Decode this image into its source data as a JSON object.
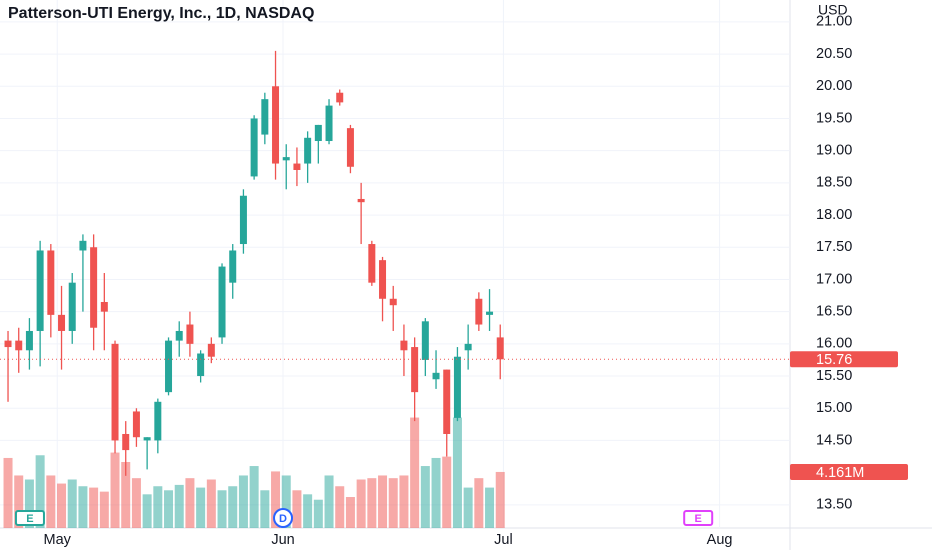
{
  "chart_data": {
    "type": "candlestick",
    "title": "Patterson-UTI Energy, Inc., 1D, NASDAQ",
    "currency": "USD",
    "up_color": "#26a69a",
    "down_color": "#ef5350",
    "xlim": [
      -0.75,
      73.08
    ],
    "xticks": [
      {
        "value": 4.6,
        "label": "May"
      },
      {
        "value": 25.7,
        "label": "Jun"
      },
      {
        "value": 46.3,
        "label": "Jul"
      },
      {
        "value": 66.5,
        "label": "Aug"
      }
    ],
    "ylim": [
      13.14,
      21.34
    ],
    "yticks": [
      {
        "value": 13.5,
        "label": "13.50"
      },
      {
        "value": 14.5,
        "label": "14.50"
      },
      {
        "value": 15,
        "label": "15.00"
      },
      {
        "value": 15.5,
        "label": "15.50"
      },
      {
        "value": 16,
        "label": "16.00"
      },
      {
        "value": 16.5,
        "label": "16.50"
      },
      {
        "value": 17,
        "label": "17.00"
      },
      {
        "value": 17.5,
        "label": "17.50"
      },
      {
        "value": 18,
        "label": "18.00"
      },
      {
        "value": 18.5,
        "label": "18.50"
      },
      {
        "value": 19,
        "label": "19.00"
      },
      {
        "value": 19.5,
        "label": "19.50"
      },
      {
        "value": 20,
        "label": "20.00"
      },
      {
        "value": 20.5,
        "label": "20.50"
      },
      {
        "value": 21,
        "label": "21.00"
      }
    ],
    "grid": true,
    "x": [
      0,
      1,
      2,
      3,
      4,
      5,
      6,
      7,
      8,
      9,
      10,
      11,
      12,
      13,
      14,
      15,
      16,
      17,
      18,
      19,
      20,
      21,
      22,
      23,
      24,
      25,
      26,
      27,
      28,
      29,
      30,
      31,
      32,
      33,
      34,
      35,
      36,
      37,
      38,
      39,
      40,
      41,
      42,
      43,
      44,
      45,
      46
    ],
    "open": [
      16.05,
      16.05,
      15.9,
      16.2,
      17.45,
      16.45,
      16.2,
      17.45,
      17.5,
      16.65,
      16.0,
      14.6,
      14.95,
      14.5,
      14.5,
      15.25,
      16.05,
      16.3,
      15.5,
      16.0,
      16.1,
      16.95,
      17.55,
      18.6,
      19.25,
      20.0,
      18.85,
      18.8,
      18.8,
      19.15,
      19.15,
      19.9,
      19.35,
      18.25,
      17.55,
      17.3,
      16.7,
      16.05,
      15.95,
      15.75,
      15.45,
      15.6,
      14.85,
      15.9,
      16.7,
      16.45,
      16.1
    ],
    "high": [
      16.2,
      16.25,
      16.4,
      17.6,
      17.55,
      16.9,
      17.1,
      17.7,
      17.7,
      17.1,
      16.05,
      14.8,
      15.0,
      14.55,
      15.15,
      16.1,
      16.35,
      16.5,
      15.9,
      16.1,
      17.25,
      17.55,
      18.4,
      19.55,
      19.9,
      20.55,
      19.1,
      19.05,
      19.3,
      19.4,
      19.8,
      19.95,
      19.4,
      18.5,
      17.6,
      17.35,
      16.9,
      16.3,
      16.1,
      16.4,
      15.9,
      15.6,
      15.95,
      16.3,
      16.8,
      16.85,
      16.3
    ],
    "low": [
      15.1,
      15.55,
      15.6,
      15.65,
      16.1,
      15.6,
      16.0,
      16.5,
      15.9,
      15.9,
      14.3,
      13.95,
      14.4,
      14.05,
      14.3,
      15.2,
      15.8,
      15.8,
      15.4,
      15.7,
      16.0,
      16.7,
      17.4,
      18.55,
      19.1,
      18.55,
      18.4,
      18.45,
      18.5,
      18.8,
      19.1,
      19.7,
      18.65,
      17.55,
      16.9,
      16.35,
      16.2,
      15.5,
      14.8,
      15.5,
      15.3,
      14.25,
      14.8,
      15.6,
      16.2,
      16.2,
      15.45
    ],
    "close": [
      15.95,
      15.9,
      16.2,
      17.45,
      16.45,
      16.2,
      16.95,
      17.6,
      16.25,
      16.5,
      14.5,
      14.35,
      14.55,
      14.55,
      15.1,
      16.05,
      16.2,
      16.0,
      15.85,
      15.8,
      17.2,
      17.45,
      18.3,
      19.5,
      19.8,
      18.8,
      18.9,
      18.7,
      19.2,
      19.4,
      19.7,
      19.75,
      18.75,
      18.2,
      16.95,
      16.7,
      16.6,
      15.9,
      15.25,
      16.35,
      15.55,
      14.6,
      15.8,
      16.0,
      16.3,
      16.5,
      15.76
    ],
    "volume": [
      5200000,
      3900000,
      3600000,
      5400000,
      3900000,
      3300000,
      3600000,
      3100000,
      3000000,
      2700000,
      5600000,
      4900000,
      3700000,
      2500000,
      3100000,
      2800000,
      3200000,
      3700000,
      3000000,
      3600000,
      2800000,
      3100000,
      3900000,
      4600000,
      2800000,
      4200000,
      3900000,
      2800000,
      2500000,
      2100000,
      3900000,
      3100000,
      2300000,
      3600000,
      3700000,
      3900000,
      3700000,
      3900000,
      8200000,
      4600000,
      5200000,
      5300000,
      8200000,
      3000000,
      3700000,
      3000000,
      4161000
    ],
    "volume_lim": [
      0,
      39200000
    ],
    "last_price": 15.76,
    "last_volume": 4161000,
    "last_volume_label": "4.161M",
    "events": [
      {
        "x": 2.05,
        "label": "E"
      },
      {
        "x": 25.7,
        "label": "D"
      },
      {
        "x": 64.5,
        "label": "E"
      }
    ]
  }
}
